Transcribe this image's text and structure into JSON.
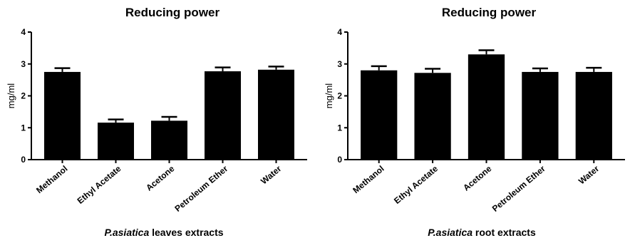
{
  "chart_data": [
    {
      "type": "bar",
      "title": "Reducing power",
      "ylabel": "mg/ml",
      "xlabel_italic": "P.asiatica",
      "xlabel_rest": " leaves extracts",
      "categories": [
        "Methanol",
        "Ethyl Acetate",
        "Acetone",
        "Petroleum Ether",
        "Water"
      ],
      "values": [
        2.75,
        1.16,
        1.22,
        2.77,
        2.82
      ],
      "errors": [
        0.12,
        0.1,
        0.12,
        0.12,
        0.1
      ],
      "ylim": [
        0,
        4
      ],
      "yticks": [
        "0",
        "1",
        "2",
        "3",
        "4"
      ],
      "bar_color": "#000000"
    },
    {
      "type": "bar",
      "title": "Reducing power",
      "ylabel": "mg/ml",
      "xlabel_italic": "P.asiatica",
      "xlabel_rest": " root extracts",
      "categories": [
        "Methanol",
        "Ethyl Acetate",
        "Acetone",
        "Petroleum Ether",
        "Water"
      ],
      "values": [
        2.8,
        2.72,
        3.3,
        2.75,
        2.75
      ],
      "errors": [
        0.13,
        0.13,
        0.13,
        0.11,
        0.13
      ],
      "ylim": [
        0,
        4
      ],
      "yticks": [
        "0",
        "1",
        "2",
        "3",
        "4"
      ],
      "bar_color": "#000000"
    }
  ]
}
